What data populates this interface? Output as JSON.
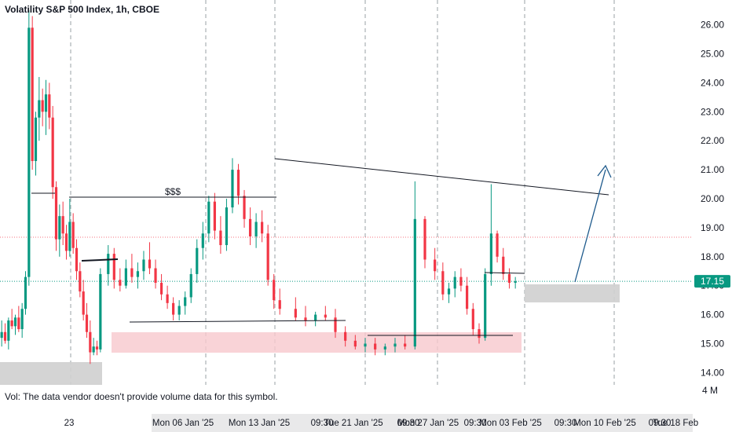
{
  "header": {
    "title": "Volatility S&P 500 Index, 1h, CBOE"
  },
  "volume_note": "Vol: The data vendor doesn't provide volume data for this symbol.",
  "annotations": {
    "liquidity_label": "$$$"
  },
  "colors": {
    "up": "#089981",
    "down": "#f23645",
    "price_tag": "#089981",
    "resistance_zone": "#f8c8cd",
    "support_zone": "#cfcfcf",
    "projection": "#1e5a8c"
  },
  "chart_data": {
    "type": "candlestick",
    "title": "Volatility S&P 500 Index, 1h, CBOE",
    "y_axis": {
      "ticks": [
        26.0,
        25.0,
        24.0,
        23.0,
        22.0,
        21.0,
        20.0,
        19.0,
        18.0,
        17.0,
        16.0,
        15.0,
        14.0
      ],
      "labels": [
        "26.00",
        "25.00",
        "24.00",
        "23.00",
        "22.00",
        "21.00",
        "20.00",
        "19.00",
        "18.00",
        "17.00",
        "16.00",
        "15.00",
        "14.00"
      ],
      "volume_label": "4 M"
    },
    "last_price": {
      "value": 17.15,
      "label": "17.15"
    },
    "x_axis": {
      "labels": [
        "23",
        "Mon 06 Jan '25",
        "Mon 13 Jan '25",
        "09:30",
        "Tue 21 Jan '25",
        "09:30",
        "Mon 27 Jan '25",
        "09:30",
        "Mon 03 Feb '25",
        "09:30",
        "Mon 10 Feb '25",
        "09:30",
        "Tue 18 Feb"
      ]
    },
    "ohlc": [
      [
        15.2,
        15.8,
        14.9,
        15.4
      ],
      [
        15.4,
        15.7,
        15.0,
        15.1
      ],
      [
        15.1,
        15.9,
        14.8,
        15.8
      ],
      [
        15.8,
        16.2,
        15.5,
        15.6
      ],
      [
        15.6,
        16.0,
        15.3,
        15.9
      ],
      [
        15.9,
        16.3,
        15.4,
        15.5
      ],
      [
        15.5,
        16.4,
        15.2,
        16.2
      ],
      [
        16.2,
        17.5,
        16.0,
        17.3
      ],
      [
        17.3,
        26.5,
        17.0,
        25.9
      ],
      [
        25.9,
        26.3,
        21.0,
        21.3
      ],
      [
        21.3,
        23.0,
        20.8,
        22.8
      ],
      [
        22.8,
        24.2,
        22.0,
        23.4
      ],
      [
        23.4,
        23.8,
        22.5,
        23.0
      ],
      [
        23.0,
        24.1,
        22.2,
        23.6
      ],
      [
        23.6,
        24.0,
        22.4,
        22.8
      ],
      [
        22.8,
        23.2,
        20.0,
        20.4
      ],
      [
        20.4,
        20.6,
        18.2,
        18.6
      ],
      [
        18.6,
        19.8,
        18.0,
        19.4
      ],
      [
        19.4,
        19.9,
        18.4,
        18.8
      ],
      [
        18.8,
        19.1,
        17.9,
        18.2
      ],
      [
        18.2,
        20.0,
        18.0,
        19.2
      ],
      [
        19.2,
        19.5,
        18.1,
        18.3
      ],
      [
        18.3,
        18.6,
        17.2,
        17.5
      ],
      [
        17.5,
        17.8,
        16.6,
        16.8
      ],
      [
        16.8,
        17.2,
        15.8,
        16.0
      ],
      [
        16.0,
        16.4,
        15.2,
        15.4
      ],
      [
        15.4,
        15.8,
        14.3,
        14.7
      ],
      [
        14.7,
        15.2,
        14.6,
        14.9
      ],
      [
        14.9,
        15.1,
        14.6,
        14.8
      ],
      [
        14.8,
        17.6,
        14.7,
        17.4
      ],
      [
        17.4,
        18.4,
        17.0,
        18.1
      ],
      [
        18.1,
        18.3,
        16.9,
        17.2
      ],
      [
        17.2,
        17.6,
        16.8,
        17.0
      ],
      [
        17.0,
        17.9,
        16.9,
        17.6
      ],
      [
        17.6,
        18.1,
        17.1,
        17.3
      ],
      [
        17.3,
        17.8,
        16.9,
        17.5
      ],
      [
        17.5,
        18.2,
        17.2,
        17.9
      ],
      [
        17.9,
        18.5,
        17.4,
        17.6
      ],
      [
        17.6,
        17.9,
        16.9,
        17.1
      ],
      [
        17.1,
        17.4,
        16.5,
        16.7
      ],
      [
        16.7,
        17.0,
        16.2,
        16.4
      ],
      [
        16.4,
        16.6,
        15.8,
        16.0
      ],
      [
        16.0,
        16.5,
        15.8,
        16.3
      ],
      [
        16.3,
        16.8,
        16.0,
        16.6
      ],
      [
        16.6,
        17.6,
        16.4,
        17.4
      ],
      [
        17.4,
        18.6,
        17.1,
        18.3
      ],
      [
        18.3,
        19.2,
        17.9,
        18.8
      ],
      [
        18.8,
        20.1,
        18.5,
        19.9
      ],
      [
        19.9,
        20.2,
        18.6,
        18.9
      ],
      [
        18.9,
        19.4,
        18.1,
        18.4
      ],
      [
        18.4,
        20.0,
        18.2,
        19.7
      ],
      [
        19.7,
        21.4,
        19.5,
        21.0
      ],
      [
        21.0,
        21.2,
        19.8,
        20.1
      ],
      [
        20.1,
        20.3,
        19.0,
        19.3
      ],
      [
        19.3,
        19.7,
        18.4,
        18.7
      ],
      [
        18.7,
        19.5,
        18.3,
        19.2
      ],
      [
        19.2,
        19.6,
        18.5,
        18.8
      ],
      [
        18.8,
        19.1,
        17.0,
        17.2
      ],
      [
        17.2,
        17.4,
        16.2,
        16.5
      ],
      [
        16.5,
        16.9,
        16.0,
        16.2
      ],
      [
        16.2,
        16.6,
        15.8,
        15.9
      ],
      [
        15.9,
        16.3,
        15.6,
        15.8
      ],
      [
        15.8,
        16.1,
        15.6,
        16.0
      ],
      [
        16.0,
        16.3,
        15.8,
        15.9
      ],
      [
        15.9,
        16.2,
        15.2,
        15.4
      ],
      [
        15.4,
        15.6,
        14.9,
        15.1
      ],
      [
        15.1,
        15.3,
        14.8,
        14.9
      ],
      [
        14.9,
        15.2,
        14.7,
        15.0
      ],
      [
        15.0,
        15.2,
        14.6,
        14.8
      ],
      [
        14.8,
        15.0,
        14.6,
        14.9
      ],
      [
        14.9,
        15.2,
        14.7,
        15.0
      ],
      [
        15.0,
        15.3,
        14.8,
        14.9
      ],
      [
        14.9,
        20.6,
        14.8,
        19.3
      ],
      [
        19.3,
        19.4,
        17.6,
        17.9
      ],
      [
        17.9,
        18.3,
        17.2,
        17.5
      ],
      [
        17.5,
        17.8,
        16.5,
        16.7
      ],
      [
        16.7,
        17.1,
        16.4,
        16.9
      ],
      [
        16.9,
        17.5,
        16.6,
        17.3
      ],
      [
        17.3,
        17.6,
        16.8,
        17.0
      ],
      [
        17.0,
        17.3,
        16.0,
        16.2
      ],
      [
        16.2,
        16.4,
        15.3,
        15.5
      ],
      [
        15.5,
        15.7,
        15.0,
        15.2
      ],
      [
        15.2,
        17.6,
        15.1,
        17.4
      ],
      [
        17.4,
        20.5,
        17.0,
        18.8
      ],
      [
        18.8,
        18.9,
        17.8,
        18.0
      ],
      [
        18.0,
        18.3,
        17.2,
        17.4
      ],
      [
        17.4,
        17.6,
        16.9,
        17.1
      ],
      [
        17.1,
        17.3,
        16.9,
        17.15
      ]
    ]
  }
}
